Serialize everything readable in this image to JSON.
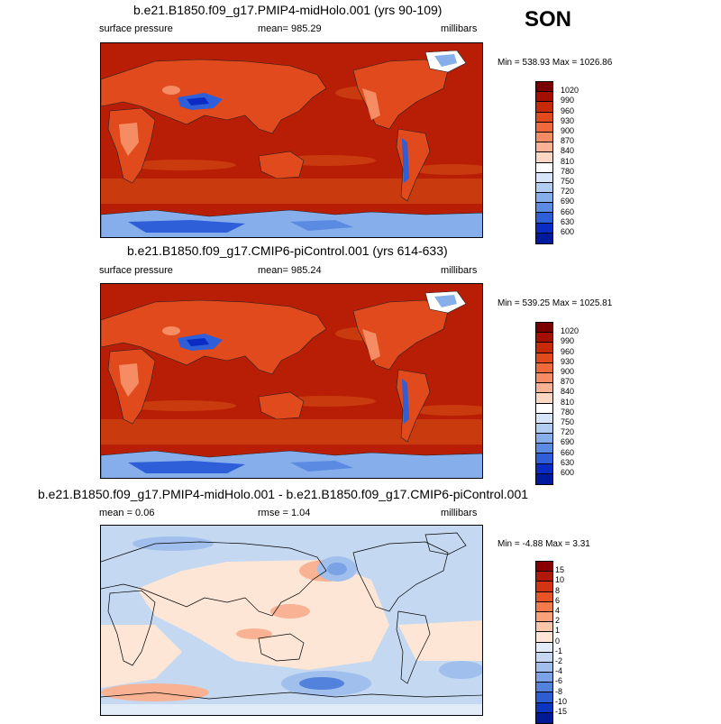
{
  "season": "SON",
  "panels": [
    {
      "title": "b.e21.B1850.f09_g17.PMIP4-midHolo.001 (yrs 90-109)",
      "left_label": "surface pressure",
      "center_label": "mean= 985.29",
      "right_label": "millibars",
      "minmax": "Min = 538.93 Max = 1026.86"
    },
    {
      "title": "b.e21.B1850.f09_g17.CMIP6-piControl.001 (yrs 614-633)",
      "left_label": "surface pressure",
      "center_label": "mean= 985.24",
      "right_label": "millibars",
      "minmax": "Min = 539.25 Max = 1025.81"
    },
    {
      "title": "b.e21.B1850.f09_g17.PMIP4-midHolo.001 - b.e21.B1850.f09_g17.CMIP6-piControl.001",
      "left_label": "mean =  0.06",
      "center_label": "rmse =  1.04",
      "right_label": "millibars",
      "minmax": "Min =  -4.88 Max =   3.31"
    }
  ],
  "colorbar_abs": {
    "labels": [
      "1020",
      "990",
      "960",
      "930",
      "900",
      "870",
      "840",
      "810",
      "780",
      "750",
      "720",
      "690",
      "660",
      "630",
      "600"
    ],
    "colors": [
      "#7a0000",
      "#a50f00",
      "#c62a08",
      "#e04a1c",
      "#ee6a3c",
      "#f58c64",
      "#f9b294",
      "#fcd8c4",
      "#ffffff",
      "#d6e6f8",
      "#b2cdf2",
      "#86aeea",
      "#5a8ae2",
      "#2e5ed8",
      "#0a2cc4",
      "#001a9e"
    ]
  },
  "colorbar_diff": {
    "labels": [
      "15",
      "10",
      "8",
      "6",
      "4",
      "2",
      "1",
      "0",
      "-1",
      "-2",
      "-4",
      "-6",
      "-8",
      "-10",
      "-15"
    ],
    "colors": [
      "#8a0000",
      "#b01808",
      "#d23414",
      "#e85426",
      "#f47a4c",
      "#f9a27a",
      "#fcc6aa",
      "#fde6d6",
      "#e2ecf8",
      "#c4d8f2",
      "#a0bfec",
      "#7aa2e4",
      "#5282dc",
      "#2c5ed2",
      "#0c36c0",
      "#001a96"
    ]
  },
  "map_colors": {
    "ocean_abs": "#b81e05",
    "ocean_abs_band": "#c93a0e",
    "land_abs": "#e04a1c",
    "land_high": "#f58c64",
    "plateau": "#2e5ed8",
    "antarctica": "#86aeea",
    "diff_base": "#fde6d6",
    "diff_blue": "#c4d8f2",
    "diff_red": "#f9b294"
  }
}
